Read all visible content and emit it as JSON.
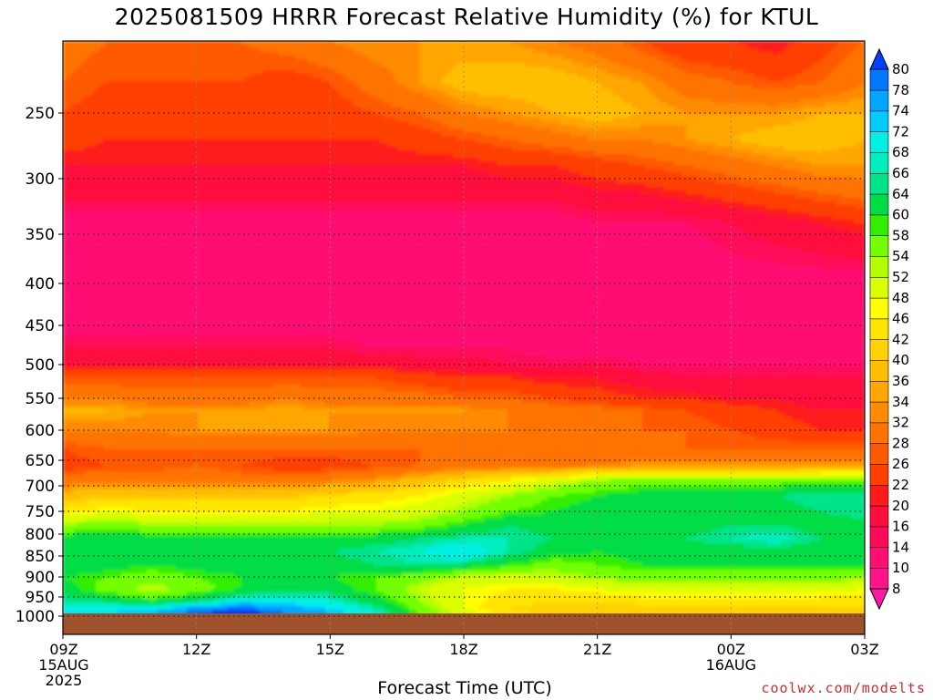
{
  "chart_data": {
    "type": "heatmap",
    "title": "2025081509 HRRR Forecast Relative Humidity (%) for KTUL",
    "xlabel": "Forecast Time (UTC)",
    "credit": "coolwx.com/modelts",
    "x_ticks": [
      {
        "t": 0,
        "lines": [
          "09Z",
          "15AUG",
          "2025"
        ]
      },
      {
        "t": 3,
        "lines": [
          "12Z"
        ]
      },
      {
        "t": 6,
        "lines": [
          "15Z"
        ]
      },
      {
        "t": 9,
        "lines": [
          "18Z"
        ]
      },
      {
        "t": 12,
        "lines": [
          "21Z"
        ]
      },
      {
        "t": 15,
        "lines": [
          "00Z",
          "16AUG"
        ]
      },
      {
        "t": 18,
        "lines": [
          "03Z"
        ]
      }
    ],
    "x_range": [
      "2025-08-15T09Z",
      "2025-08-16T03Z"
    ],
    "y_ticks": [
      250,
      300,
      350,
      400,
      450,
      500,
      550,
      600,
      650,
      700,
      750,
      800,
      850,
      900,
      950,
      1000
    ],
    "y_axis": "pressure (hPa), decreasing upward",
    "surface_color": "#a0522d",
    "colorbar": {
      "levels": [
        8,
        10,
        14,
        16,
        20,
        22,
        26,
        28,
        32,
        34,
        36,
        40,
        42,
        46,
        48,
        52,
        54,
        58,
        60,
        64,
        66,
        68,
        72,
        74,
        78,
        80
      ],
      "colors": [
        "#ff1aa6",
        "#ff148c",
        "#ff0f73",
        "#ff0a5a",
        "#ff0d3c",
        "#ff1a1a",
        "#ff4000",
        "#ff5a00",
        "#ff7300",
        "#ff8c00",
        "#ffa600",
        "#ffbf00",
        "#ffd200",
        "#ffe600",
        "#ffff00",
        "#d9ff00",
        "#b3ff00",
        "#73ff00",
        "#33ee00",
        "#00dd44",
        "#00e48a",
        "#00eebb",
        "#00f0e6",
        "#00ccff",
        "#00a6ff",
        "#0077ff",
        "#0040ff"
      ],
      "extend": "both"
    },
    "rh_profiles": [
      {
        "p": 180,
        "rh": [
          30,
          28,
          28,
          28,
          28,
          30,
          32,
          34,
          34,
          34,
          34,
          32,
          30,
          26,
          22,
          22,
          20,
          24,
          28
        ]
      },
      {
        "p": 220,
        "rh": [
          28,
          26,
          26,
          26,
          26,
          24,
          26,
          30,
          34,
          38,
          38,
          38,
          36,
          34,
          30,
          28,
          26,
          28,
          32
        ]
      },
      {
        "p": 250,
        "rh": [
          26,
          24,
          24,
          24,
          24,
          24,
          24,
          26,
          28,
          32,
          34,
          36,
          38,
          36,
          34,
          34,
          34,
          36,
          36
        ]
      },
      {
        "p": 270,
        "rh": [
          24,
          22,
          22,
          22,
          22,
          22,
          22,
          22,
          24,
          26,
          28,
          30,
          32,
          32,
          34,
          36,
          38,
          38,
          36
        ]
      },
      {
        "p": 290,
        "rh": [
          20,
          20,
          20,
          20,
          20,
          20,
          20,
          20,
          20,
          20,
          22,
          22,
          24,
          26,
          28,
          30,
          32,
          34,
          34
        ]
      },
      {
        "p": 320,
        "rh": [
          16,
          16,
          16,
          16,
          16,
          16,
          16,
          16,
          16,
          16,
          16,
          16,
          18,
          18,
          20,
          22,
          24,
          26,
          28
        ]
      },
      {
        "p": 340,
        "rh": [
          12,
          12,
          12,
          12,
          12,
          12,
          12,
          12,
          12,
          12,
          12,
          12,
          14,
          14,
          14,
          16,
          18,
          20,
          22
        ]
      },
      {
        "p": 400,
        "rh": [
          10,
          10,
          10,
          10,
          10,
          10,
          10,
          10,
          10,
          10,
          10,
          10,
          10,
          10,
          10,
          12,
          12,
          12,
          12
        ]
      },
      {
        "p": 450,
        "rh": [
          12,
          12,
          12,
          12,
          12,
          12,
          12,
          12,
          12,
          12,
          10,
          10,
          10,
          10,
          10,
          10,
          10,
          10,
          10
        ]
      },
      {
        "p": 480,
        "rh": [
          16,
          16,
          16,
          16,
          16,
          16,
          16,
          14,
          14,
          14,
          14,
          12,
          12,
          12,
          12,
          12,
          12,
          12,
          12
        ]
      },
      {
        "p": 500,
        "rh": [
          20,
          20,
          20,
          20,
          20,
          20,
          20,
          20,
          18,
          18,
          16,
          16,
          16,
          14,
          14,
          14,
          14,
          14,
          14
        ]
      },
      {
        "p": 520,
        "rh": [
          26,
          26,
          26,
          26,
          26,
          26,
          26,
          26,
          24,
          22,
          22,
          20,
          20,
          18,
          16,
          16,
          16,
          16,
          16
        ]
      },
      {
        "p": 550,
        "rh": [
          32,
          32,
          30,
          30,
          30,
          32,
          30,
          30,
          30,
          28,
          28,
          26,
          24,
          22,
          22,
          20,
          20,
          18,
          18
        ]
      },
      {
        "p": 570,
        "rh": [
          36,
          36,
          34,
          34,
          34,
          36,
          34,
          34,
          34,
          34,
          32,
          30,
          30,
          28,
          26,
          24,
          22,
          20,
          20
        ]
      },
      {
        "p": 600,
        "rh": [
          32,
          32,
          32,
          34,
          34,
          34,
          34,
          32,
          32,
          32,
          32,
          32,
          30,
          28,
          28,
          26,
          24,
          22,
          22
        ]
      },
      {
        "p": 630,
        "rh": [
          26,
          28,
          28,
          28,
          28,
          28,
          28,
          28,
          28,
          28,
          28,
          28,
          28,
          28,
          28,
          28,
          28,
          28,
          28
        ]
      },
      {
        "p": 660,
        "rh": [
          24,
          26,
          26,
          28,
          26,
          24,
          24,
          26,
          28,
          30,
          30,
          30,
          32,
          34,
          34,
          34,
          34,
          34,
          34
        ]
      },
      {
        "p": 690,
        "rh": [
          30,
          32,
          32,
          32,
          30,
          30,
          32,
          34,
          38,
          42,
          46,
          50,
          54,
          56,
          56,
          56,
          56,
          58,
          58
        ]
      },
      {
        "p": 720,
        "rh": [
          38,
          40,
          40,
          40,
          40,
          40,
          42,
          44,
          46,
          50,
          54,
          58,
          60,
          62,
          62,
          62,
          64,
          66,
          66
        ]
      },
      {
        "p": 750,
        "rh": [
          44,
          48,
          46,
          46,
          46,
          46,
          48,
          48,
          50,
          54,
          58,
          60,
          62,
          62,
          62,
          62,
          62,
          64,
          66
        ]
      },
      {
        "p": 780,
        "rh": [
          54,
          56,
          54,
          54,
          54,
          54,
          54,
          54,
          56,
          60,
          64,
          62,
          62,
          62,
          62,
          64,
          64,
          62,
          62
        ]
      },
      {
        "p": 810,
        "rh": [
          62,
          62,
          62,
          62,
          62,
          62,
          62,
          62,
          64,
          66,
          66,
          64,
          62,
          62,
          64,
          66,
          68,
          64,
          62
        ]
      },
      {
        "p": 840,
        "rh": [
          64,
          62,
          62,
          62,
          64,
          64,
          64,
          66,
          68,
          72,
          66,
          62,
          60,
          62,
          62,
          62,
          62,
          62,
          62
        ]
      },
      {
        "p": 870,
        "rh": [
          64,
          62,
          60,
          62,
          62,
          62,
          62,
          64,
          66,
          64,
          60,
          56,
          58,
          60,
          60,
          60,
          60,
          60,
          60
        ]
      },
      {
        "p": 900,
        "rh": [
          60,
          58,
          56,
          58,
          60,
          60,
          60,
          58,
          56,
          52,
          50,
          52,
          54,
          56,
          56,
          56,
          56,
          56,
          54
        ]
      },
      {
        "p": 930,
        "rh": [
          62,
          56,
          52,
          56,
          60,
          62,
          62,
          58,
          52,
          48,
          46,
          46,
          48,
          50,
          50,
          50,
          50,
          50,
          48
        ]
      },
      {
        "p": 960,
        "rh": [
          66,
          64,
          60,
          64,
          70,
          70,
          68,
          62,
          54,
          48,
          44,
          42,
          42,
          44,
          44,
          44,
          44,
          44,
          44
        ]
      },
      {
        "p": 980,
        "rh": [
          70,
          70,
          70,
          76,
          80,
          76,
          72,
          66,
          56,
          48,
          42,
          40,
          40,
          40,
          40,
          40,
          40,
          40,
          40
        ]
      },
      {
        "p": 990,
        "rh": [
          72,
          72,
          74,
          80,
          82,
          78,
          74,
          68,
          58,
          50,
          44,
          40,
          40,
          40,
          40,
          40,
          40,
          40,
          40
        ]
      }
    ]
  }
}
